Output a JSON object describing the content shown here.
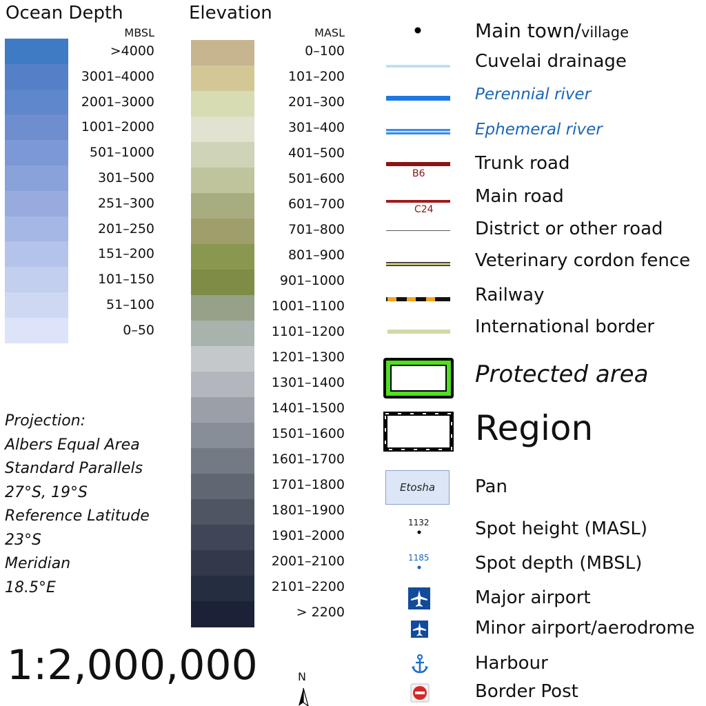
{
  "ocean": {
    "title": "Ocean Depth",
    "unit": "MBSL",
    "classes": [
      {
        "label": ">4000",
        "color": "#3e7bc4"
      },
      {
        "label": "3001–4000",
        "color": "#5580c8"
      },
      {
        "label": "2001–3000",
        "color": "#5f87cc"
      },
      {
        "label": "1001–2000",
        "color": "#6f8ed0"
      },
      {
        "label": "501–1000",
        "color": "#7d98d6"
      },
      {
        "label": "301–500",
        "color": "#8aa2da"
      },
      {
        "label": "251–300",
        "color": "#97abdf"
      },
      {
        "label": "201–250",
        "color": "#a5b7e4"
      },
      {
        "label": "151–200",
        "color": "#b4c3e9"
      },
      {
        "label": "101–150",
        "color": "#c2cfee"
      },
      {
        "label": "51–100",
        "color": "#cfd8f3"
      },
      {
        "label": "0–50",
        "color": "#dde3f8"
      }
    ]
  },
  "elevation": {
    "title": "Elevation",
    "unit": "MASL",
    "classes": [
      {
        "label": "0–100",
        "color": "#c7b590"
      },
      {
        "label": "101–200",
        "color": "#d3c796"
      },
      {
        "label": "201–300",
        "color": "#d8dcb2"
      },
      {
        "label": "301–400",
        "color": "#e1e2cf"
      },
      {
        "label": "401–500",
        "color": "#cfd3b8"
      },
      {
        "label": "501–600",
        "color": "#bfc49d"
      },
      {
        "label": "601–700",
        "color": "#a8ad80"
      },
      {
        "label": "701–800",
        "color": "#9f9f6c"
      },
      {
        "label": "801–900",
        "color": "#8a974e"
      },
      {
        "label": "901–1000",
        "color": "#7f8c45"
      },
      {
        "label": "1001–1100",
        "color": "#97a088"
      },
      {
        "label": "1101–1200",
        "color": "#a8b3ad"
      },
      {
        "label": "1201–1300",
        "color": "#c4c8ca"
      },
      {
        "label": "1301–1400",
        "color": "#b4b6be"
      },
      {
        "label": "1401–1500",
        "color": "#9ba0a8"
      },
      {
        "label": "1501–1600",
        "color": "#888e97"
      },
      {
        "label": "1601–1700",
        "color": "#737a84"
      },
      {
        "label": "1701–1800",
        "color": "#5f6772"
      },
      {
        "label": "1801–1900",
        "color": "#4e5664"
      },
      {
        "label": "1901–2000",
        "color": "#3e4657"
      },
      {
        "label": "2001–2100",
        "color": "#31394b"
      },
      {
        "label": "2101–2200",
        "color": "#252d41"
      },
      {
        "label": "> 2200",
        "color": "#1b2237"
      }
    ]
  },
  "projection": {
    "lines": [
      "Projection:",
      "Albers Equal Area",
      "Standard Parallels",
      "27°S, 19°S",
      "Reference Latitude",
      "23°S",
      "Meridian",
      "18.5°E"
    ]
  },
  "scale": "1:2,000,000",
  "north_label": "N",
  "legend": {
    "main_town": {
      "label": "Main town/",
      "label_small": "village"
    },
    "cuvelai": {
      "label": "Cuvelai drainage",
      "color": "#bfe0f5"
    },
    "perennial": {
      "label": "Perennial river",
      "color": "#1f78e0"
    },
    "ephemeral": {
      "label": "Ephemeral river",
      "color": "#3c8ce6"
    },
    "trunk": {
      "label": "Trunk road",
      "code": "B6",
      "color": "#8b1414"
    },
    "main_road": {
      "label": "Main road",
      "code": "C24",
      "color": "#9b1d1d"
    },
    "district": {
      "label": "District or other road"
    },
    "vet_fence": {
      "label": "Veterinary cordon fence"
    },
    "railway": {
      "label": "Railway"
    },
    "border": {
      "label": "International border",
      "color": "#d2d8a6"
    },
    "protected": {
      "label": "Protected area",
      "color": "#4fe01e"
    },
    "region": {
      "label": "Region"
    },
    "pan": {
      "label": "Pan",
      "sample": "Etosha",
      "color": "#dce6f7"
    },
    "spot_height": {
      "label": "Spot height (MASL)",
      "sample": "1132"
    },
    "spot_depth": {
      "label": "Spot depth (MBSL)",
      "sample": "1185"
    },
    "major_airport": {
      "label": "Major airport"
    },
    "minor_airport": {
      "label": "Minor airport/aerodrome"
    },
    "harbour": {
      "label": "Harbour"
    },
    "border_post": {
      "label": "Border Post"
    }
  }
}
